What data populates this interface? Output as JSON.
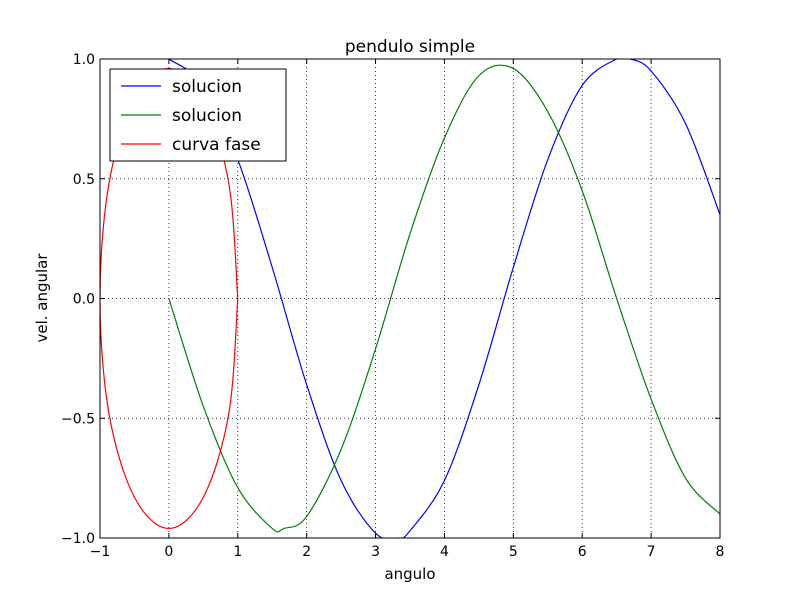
{
  "chart_data": {
    "type": "line",
    "title": "pendulo simple",
    "xlabel": "angulo",
    "ylabel": "vel. angular",
    "xlim": [
      -1,
      8
    ],
    "ylim": [
      -1.0,
      1.0
    ],
    "grid": true,
    "legend_position": "top-left",
    "x_ticks": [
      -1,
      0,
      1,
      2,
      3,
      4,
      5,
      6,
      7,
      8
    ],
    "x_tick_labels": [
      "−1",
      "0",
      "1",
      "2",
      "3",
      "4",
      "5",
      "6",
      "7",
      "8"
    ],
    "y_ticks": [
      -1.0,
      -0.5,
      0.0,
      0.5,
      1.0
    ],
    "y_tick_labels": [
      "−1.0",
      "−0.5",
      "0.0",
      "0.5",
      "1.0"
    ],
    "series": [
      {
        "name": "solucion",
        "color": "#0000ff",
        "x": [
          0.0,
          0.5,
          1.0,
          1.5,
          2.0,
          2.5,
          3.0,
          3.33,
          3.5,
          4.0,
          4.5,
          5.0,
          5.5,
          6.0,
          6.5,
          6.7,
          7.0,
          7.5,
          8.0
        ],
        "y": [
          1.0,
          0.89,
          0.58,
          0.13,
          -0.36,
          -0.76,
          -0.98,
          -1.0,
          -0.97,
          -0.76,
          -0.36,
          0.13,
          0.58,
          0.89,
          1.0,
          1.0,
          0.95,
          0.73,
          0.35
        ]
      },
      {
        "name": "solucion",
        "color": "#008000",
        "x": [
          0.0,
          0.5,
          1.0,
          1.5,
          1.67,
          2.0,
          2.5,
          3.0,
          3.5,
          4.0,
          4.5,
          5.0,
          5.5,
          6.0,
          6.5,
          7.0,
          7.5,
          8.0
        ],
        "y": [
          0.0,
          -0.45,
          -0.79,
          -0.96,
          -0.96,
          -0.91,
          -0.63,
          -0.21,
          0.27,
          0.67,
          0.93,
          0.96,
          0.78,
          0.45,
          0.0,
          -0.42,
          -0.75,
          -0.9
        ]
      },
      {
        "name": "curva fase",
        "color": "#ff0000",
        "x": [
          1.0,
          0.87,
          0.5,
          0.0,
          -0.5,
          -0.87,
          -1.0,
          -0.87,
          -0.5,
          0.0,
          0.5,
          0.87,
          1.0
        ],
        "y": [
          0.0,
          0.48,
          0.83,
          0.96,
          0.83,
          0.48,
          0.0,
          -0.48,
          -0.83,
          -0.96,
          -0.83,
          -0.48,
          0.0
        ]
      }
    ]
  }
}
